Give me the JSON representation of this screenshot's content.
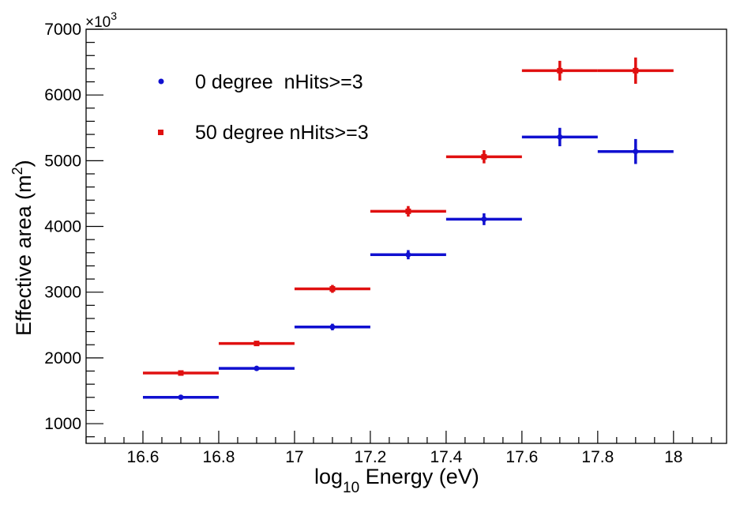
{
  "chart_data": {
    "type": "scatter",
    "title": "",
    "xlabel": {
      "prefix": "log",
      "subscript": "10",
      "suffix": " Energy (eV)"
    },
    "ylabel": {
      "text": "Effective area (m",
      "superscript": "2",
      "close": ")"
    },
    "y_multiplier": {
      "base": "×10",
      "exponent": "3"
    },
    "xlim": [
      16.45,
      18.14
    ],
    "ylim": [
      700,
      7000
    ],
    "x_ticks": [
      16.6,
      16.8,
      17.0,
      17.2,
      17.4,
      17.6,
      17.8,
      18.0
    ],
    "x_tick_labels": [
      "16.6",
      "16.8",
      "17",
      "17.2",
      "17.4",
      "17.6",
      "17.8",
      "18"
    ],
    "y_ticks": [
      1000,
      2000,
      3000,
      4000,
      5000,
      6000,
      7000
    ],
    "y_tick_labels": [
      "1000",
      "2000",
      "3000",
      "4000",
      "5000",
      "6000",
      "7000"
    ],
    "series": [
      {
        "name": "0 degree  nHits>=3",
        "color": "#1010d0",
        "marker": "circle",
        "points": [
          {
            "x": 16.7,
            "xerr": 0.1,
            "y": 1400,
            "yerr": 20
          },
          {
            "x": 16.9,
            "xerr": 0.1,
            "y": 1840,
            "yerr": 25
          },
          {
            "x": 17.1,
            "xerr": 0.1,
            "y": 2470,
            "yerr": 50
          },
          {
            "x": 17.3,
            "xerr": 0.1,
            "y": 3570,
            "yerr": 70
          },
          {
            "x": 17.5,
            "xerr": 0.1,
            "y": 4110,
            "yerr": 90
          },
          {
            "x": 17.7,
            "xerr": 0.1,
            "y": 5360,
            "yerr": 140
          },
          {
            "x": 17.9,
            "xerr": 0.1,
            "y": 5140,
            "yerr": 190
          }
        ]
      },
      {
        "name": "50 degree nHits>=3",
        "color": "#e01010",
        "marker": "square",
        "points": [
          {
            "x": 16.7,
            "xerr": 0.1,
            "y": 1770,
            "yerr": 25
          },
          {
            "x": 16.9,
            "xerr": 0.1,
            "y": 2220,
            "yerr": 30
          },
          {
            "x": 17.1,
            "xerr": 0.1,
            "y": 3050,
            "yerr": 60
          },
          {
            "x": 17.3,
            "xerr": 0.1,
            "y": 4230,
            "yerr": 80
          },
          {
            "x": 17.5,
            "xerr": 0.1,
            "y": 5060,
            "yerr": 100
          },
          {
            "x": 17.7,
            "xerr": 0.1,
            "y": 6370,
            "yerr": 150
          },
          {
            "x": 17.9,
            "xerr": 0.1,
            "y": 6370,
            "yerr": 200
          }
        ]
      }
    ],
    "legend_position": "top-left",
    "grid": false
  }
}
